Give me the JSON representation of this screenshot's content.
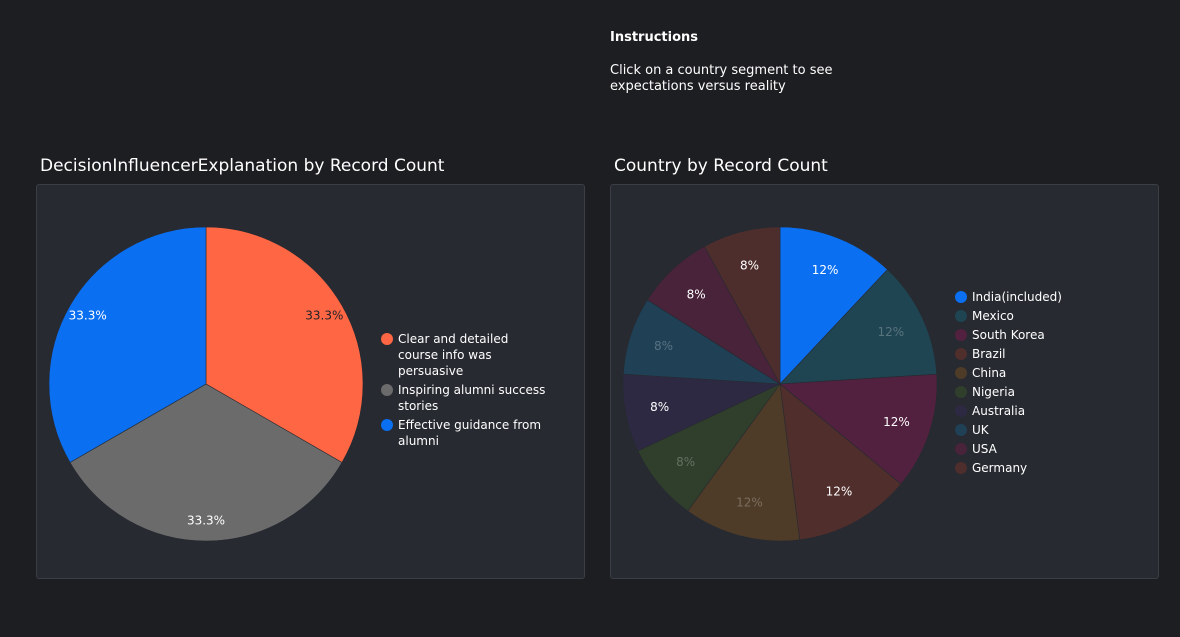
{
  "instructions": {
    "title": "Instructions",
    "text": "Click on a country segment to see expectations versus reality"
  },
  "chart_data": [
    {
      "type": "pie",
      "title": "DecisionInfluencerExplanation by Record Count",
      "legend_position": "right",
      "categories": [
        "Clear and detailed course info was persuasive",
        "Inspiring alumni success stories",
        "Effective guidance from alumni"
      ],
      "values": [
        33.3,
        33.3,
        33.3
      ],
      "labels": [
        "33.3%",
        "33.3%",
        "33.3%"
      ],
      "colors": [
        "#ff6644",
        "#6b6b6b",
        "#0a6ff0"
      ]
    },
    {
      "type": "pie",
      "title": "Country by Record Count",
      "legend_position": "right",
      "selected": "India(included)",
      "categories": [
        "India(included)",
        "Mexico",
        "South Korea",
        "Brazil",
        "China",
        "Nigeria",
        "Australia",
        "UK",
        "USA",
        "Germany"
      ],
      "values": [
        12,
        12,
        12,
        12,
        12,
        8,
        8,
        8,
        8,
        8
      ],
      "labels": [
        "12%",
        "12%",
        "12%",
        "12%",
        "12%",
        "8%",
        "8%",
        "8%",
        "8%",
        "8%"
      ],
      "colors": [
        "#0a6ff0",
        "#1f4452",
        "#52213f",
        "#4f2e2c",
        "#4e3b28",
        "#2f3f2b",
        "#2e2942",
        "#1f4055",
        "#48233a",
        "#4e2e2c"
      ],
      "dim_opacity": 0.7
    }
  ]
}
